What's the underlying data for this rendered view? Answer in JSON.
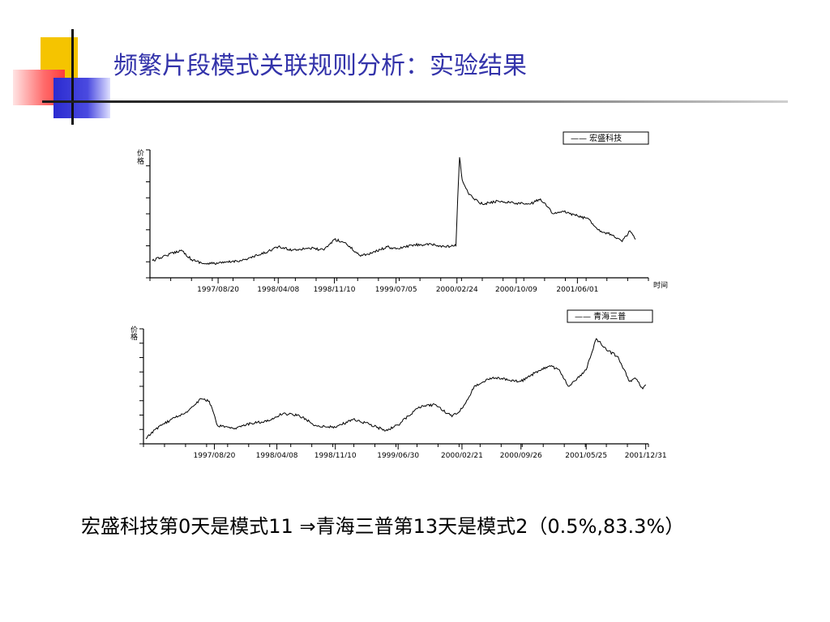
{
  "slide": {
    "title": "频繁片段模式关联规则分析：实验结果",
    "conclusion_prefix": "宏盛科技第",
    "conclusion_a": "0",
    "conclusion_b": "天是模式",
    "conclusion_c": "11",
    "conclusion_arrow": "⇒",
    "conclusion_d": "青海三普第",
    "conclusion_e": "13",
    "conclusion_f": "天是模式",
    "conclusion_g": "2",
    "conclusion_h": "（",
    "conclusion_i": "0.5%,83.3%",
    "conclusion_j": "）"
  },
  "colors": {
    "title": "#3333aa",
    "deco_yellow": "#f5c400",
    "deco_red": "#ff5a5a",
    "deco_blue": "#3b3bd6",
    "line": "#000000"
  },
  "chart_data": [
    {
      "type": "line",
      "legend": "—— 宏盛科技",
      "ylabel": "价格",
      "xlabel": "时间",
      "xlim": [
        "1996/12/01",
        "2002/03/01"
      ],
      "ylim": [
        0,
        12
      ],
      "grid": false,
      "legend_position": "top-right",
      "xticks": [
        "1997/08/20",
        "1998/04/08",
        "1998/11/10",
        "1999/07/05",
        "2000/02/24",
        "2000/10/09",
        "2001/06/01"
      ],
      "series": [
        {
          "name": "宏盛科技",
          "points": [
            [
              "1996/12/10",
              1.6
            ],
            [
              "1997/02/01",
              2.1
            ],
            [
              "1997/04/01",
              2.6
            ],
            [
              "1997/05/10",
              1.7
            ],
            [
              "1997/07/01",
              1.3
            ],
            [
              "1997/09/10",
              1.4
            ],
            [
              "1997/12/01",
              1.7
            ],
            [
              "1998/02/01",
              2.2
            ],
            [
              "1998/04/08",
              2.9
            ],
            [
              "1998/06/01",
              2.6
            ],
            [
              "1998/08/01",
              2.8
            ],
            [
              "1998/10/01",
              2.6
            ],
            [
              "1998/11/10",
              3.6
            ],
            [
              "1998/12/20",
              3.3
            ],
            [
              "1999/02/15",
              2.1
            ],
            [
              "1999/04/01",
              2.3
            ],
            [
              "1999/06/01",
              2.9
            ],
            [
              "1999/07/05",
              2.7
            ],
            [
              "1999/09/15",
              3.1
            ],
            [
              "1999/11/20",
              3.1
            ],
            [
              "2000/01/10",
              2.9
            ],
            [
              "2000/02/20",
              3.0
            ],
            [
              "2000/02/24",
              5.6
            ],
            [
              "2000/03/01",
              9.2
            ],
            [
              "2000/03/05",
              11.3
            ],
            [
              "2000/03/15",
              9.2
            ],
            [
              "2000/04/10",
              7.8
            ],
            [
              "2000/06/01",
              6.9
            ],
            [
              "2000/08/01",
              7.2
            ],
            [
              "2000/10/09",
              7.0
            ],
            [
              "2000/12/01",
              6.9
            ],
            [
              "2001/01/10",
              7.4
            ],
            [
              "2001/03/01",
              6.0
            ],
            [
              "2001/04/10",
              6.2
            ],
            [
              "2001/06/01",
              5.8
            ],
            [
              "2001/07/15",
              5.5
            ],
            [
              "2001/08/20",
              4.5
            ],
            [
              "2001/10/15",
              4.0
            ],
            [
              "2001/11/20",
              3.4
            ],
            [
              "2001/12/20",
              4.4
            ],
            [
              "2002/01/10",
              3.6
            ]
          ]
        }
      ]
    },
    {
      "type": "line",
      "legend": "—— 青海三普",
      "ylabel": "价格",
      "xlabel": "时间",
      "xlim": [
        "1996/12/01",
        "2002/01/10"
      ],
      "ylim": [
        0,
        14
      ],
      "grid": false,
      "legend_position": "top-right",
      "xticks": [
        "1997/08/20",
        "1998/04/08",
        "1998/11/10",
        "1999/06/30",
        "2000/02/21",
        "2000/09/26",
        "2001/05/25",
        "2001/12/31"
      ],
      "series": [
        {
          "name": "青海三普",
          "points": [
            [
              "1996/12/10",
              0.6
            ],
            [
              "1997/01/15",
              1.8
            ],
            [
              "1997/03/15",
              3.0
            ],
            [
              "1997/05/15",
              4.0
            ],
            [
              "1997/07/01",
              5.5
            ],
            [
              "1997/08/01",
              5.2
            ],
            [
              "1997/09/01",
              2.2
            ],
            [
              "1997/11/01",
              1.8
            ],
            [
              "1998/01/01",
              2.5
            ],
            [
              "1998/03/01",
              2.7
            ],
            [
              "1998/05/01",
              3.7
            ],
            [
              "1998/07/01",
              3.4
            ],
            [
              "1998/09/01",
              2.2
            ],
            [
              "1998/11/10",
              2.0
            ],
            [
              "1999/01/15",
              3.0
            ],
            [
              "1999/03/15",
              2.4
            ],
            [
              "1999/05/15",
              1.6
            ],
            [
              "1999/06/30",
              2.3
            ],
            [
              "1999/09/15",
              4.5
            ],
            [
              "1999/11/15",
              4.8
            ],
            [
              "2000/01/15",
              3.3
            ],
            [
              "2000/02/21",
              4.3
            ],
            [
              "2000/04/10",
              7.1
            ],
            [
              "2000/06/15",
              8.1
            ],
            [
              "2000/09/26",
              7.6
            ],
            [
              "2000/11/15",
              8.6
            ],
            [
              "2001/01/10",
              9.5
            ],
            [
              "2001/02/15",
              9.0
            ],
            [
              "2001/03/20",
              7.0
            ],
            [
              "2001/05/25",
              9.0
            ],
            [
              "2001/07/01",
              12.8
            ],
            [
              "2001/08/15",
              11.3
            ],
            [
              "2001/09/20",
              10.6
            ],
            [
              "2001/11/01",
              7.6
            ],
            [
              "2001/11/25",
              7.9
            ],
            [
              "2001/12/20",
              6.7
            ],
            [
              "2001/12/31",
              7.2
            ]
          ]
        }
      ]
    }
  ]
}
